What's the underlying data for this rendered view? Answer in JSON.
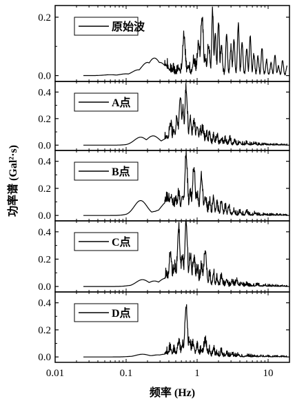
{
  "chart_data": {
    "type": "line",
    "xlabel": "频率 (Hz)",
    "ylabel": "功率谱 (Gal²·s)",
    "xscale": "log",
    "xlim": [
      0.01,
      20
    ],
    "x_ticks": [
      0.01,
      0.1,
      1,
      10
    ],
    "x_tick_labels": [
      "0.01",
      "0.1",
      "1",
      "10"
    ],
    "panels": [
      {
        "legend": "原始波",
        "ylim": [
          -0.02,
          0.24
        ],
        "y_ticks": [
          0.0,
          0.2
        ],
        "y_tick_labels": [
          "0.0",
          "0.2"
        ],
        "peaks": [
          [
            0.025,
            0.0
          ],
          [
            0.06,
            0.003
          ],
          [
            0.1,
            0.006
          ],
          [
            0.15,
            0.02
          ],
          [
            0.2,
            0.045
          ],
          [
            0.25,
            0.06
          ],
          [
            0.3,
            0.045
          ],
          [
            0.35,
            0.018
          ],
          [
            0.45,
            0.01
          ],
          [
            0.55,
            0.02
          ],
          [
            0.65,
            0.12
          ],
          [
            0.75,
            0.025
          ],
          [
            0.9,
            0.04
          ],
          [
            1.05,
            0.1
          ],
          [
            1.17,
            0.19
          ],
          [
            1.3,
            0.05
          ],
          [
            1.45,
            0.09
          ],
          [
            1.65,
            0.21
          ],
          [
            1.8,
            0.14
          ],
          [
            2.0,
            0.18
          ],
          [
            2.2,
            0.1
          ],
          [
            2.6,
            0.14
          ],
          [
            3.0,
            0.09
          ],
          [
            3.3,
            0.12
          ],
          [
            3.8,
            0.17
          ],
          [
            4.3,
            0.11
          ],
          [
            5.0,
            0.09
          ],
          [
            5.6,
            0.13
          ],
          [
            6.3,
            0.07
          ],
          [
            7.2,
            0.06
          ],
          [
            8.2,
            0.09
          ],
          [
            9.5,
            0.05
          ],
          [
            11,
            0.04
          ],
          [
            12.5,
            0.07
          ],
          [
            14,
            0.03
          ],
          [
            16,
            0.05
          ],
          [
            18.5,
            0.03
          ]
        ]
      },
      {
        "legend": "A点",
        "ylim": [
          -0.04,
          0.48
        ],
        "y_ticks": [
          0.0,
          0.2,
          0.4
        ],
        "y_tick_labels": [
          "0.0",
          "0.2",
          "0.4"
        ],
        "peaks": [
          [
            0.025,
            0.0
          ],
          [
            0.13,
            0.01
          ],
          [
            0.16,
            0.06
          ],
          [
            0.19,
            0.02
          ],
          [
            0.24,
            0.07
          ],
          [
            0.3,
            0.03
          ],
          [
            0.38,
            0.05
          ],
          [
            0.42,
            0.15
          ],
          [
            0.47,
            0.1
          ],
          [
            0.52,
            0.18
          ],
          [
            0.58,
            0.35
          ],
          [
            0.63,
            0.25
          ],
          [
            0.7,
            0.4
          ],
          [
            0.8,
            0.18
          ],
          [
            0.9,
            0.16
          ],
          [
            1.0,
            0.13
          ],
          [
            1.1,
            0.09
          ],
          [
            1.2,
            0.1
          ],
          [
            1.35,
            0.06
          ],
          [
            1.5,
            0.08
          ],
          [
            1.7,
            0.05
          ],
          [
            1.9,
            0.06
          ],
          [
            2.2,
            0.04
          ],
          [
            2.5,
            0.03
          ],
          [
            2.9,
            0.04
          ],
          [
            3.4,
            0.02
          ],
          [
            4.0,
            0.02
          ],
          [
            5.0,
            0.01
          ],
          [
            6.5,
            0.01
          ],
          [
            9,
            0.005
          ]
        ]
      },
      {
        "legend": "B点",
        "ylim": [
          -0.04,
          0.48
        ],
        "y_ticks": [
          0.0,
          0.2,
          0.4
        ],
        "y_tick_labels": [
          "0.0",
          "0.2",
          "0.4"
        ],
        "peaks": [
          [
            0.025,
            0.0
          ],
          [
            0.13,
            0.02
          ],
          [
            0.16,
            0.11
          ],
          [
            0.2,
            0.03
          ],
          [
            0.26,
            0.03
          ],
          [
            0.3,
            0.04
          ],
          [
            0.38,
            0.1
          ],
          [
            0.43,
            0.13
          ],
          [
            0.5,
            0.1
          ],
          [
            0.55,
            0.14
          ],
          [
            0.62,
            0.13
          ],
          [
            0.7,
            0.43
          ],
          [
            0.8,
            0.15
          ],
          [
            0.9,
            0.34
          ],
          [
            1.0,
            0.13
          ],
          [
            1.15,
            0.27
          ],
          [
            1.3,
            0.12
          ],
          [
            1.5,
            0.09
          ],
          [
            1.7,
            0.12
          ],
          [
            1.9,
            0.07
          ],
          [
            2.2,
            0.1
          ],
          [
            2.5,
            0.05
          ],
          [
            2.8,
            0.06
          ],
          [
            3.3,
            0.03
          ],
          [
            4.0,
            0.02
          ],
          [
            5.0,
            0.02
          ],
          [
            6.5,
            0.01
          ],
          [
            9,
            0.005
          ]
        ]
      },
      {
        "legend": "C点",
        "ylim": [
          -0.04,
          0.48
        ],
        "y_ticks": [
          0.0,
          0.2,
          0.4
        ],
        "y_tick_labels": [
          "0.0",
          "0.2",
          "0.4"
        ],
        "peaks": [
          [
            0.025,
            0.0
          ],
          [
            0.13,
            0.01
          ],
          [
            0.17,
            0.05
          ],
          [
            0.2,
            0.02
          ],
          [
            0.25,
            0.04
          ],
          [
            0.3,
            0.02
          ],
          [
            0.36,
            0.06
          ],
          [
            0.42,
            0.23
          ],
          [
            0.48,
            0.13
          ],
          [
            0.55,
            0.4
          ],
          [
            0.62,
            0.2
          ],
          [
            0.7,
            0.45
          ],
          [
            0.8,
            0.2
          ],
          [
            0.9,
            0.18
          ],
          [
            1.0,
            0.11
          ],
          [
            1.15,
            0.12
          ],
          [
            1.3,
            0.24
          ],
          [
            1.5,
            0.07
          ],
          [
            1.7,
            0.09
          ],
          [
            1.9,
            0.05
          ],
          [
            2.2,
            0.06
          ],
          [
            2.6,
            0.04
          ],
          [
            3.1,
            0.03
          ],
          [
            3.6,
            0.04
          ],
          [
            4.2,
            0.02
          ],
          [
            5.0,
            0.01
          ],
          [
            7,
            0.01
          ],
          [
            9,
            0.005
          ]
        ]
      },
      {
        "legend": "D点",
        "ylim": [
          -0.04,
          0.48
        ],
        "y_ticks": [
          0.0,
          0.2,
          0.4
        ],
        "y_tick_labels": [
          "0.0",
          "0.2",
          "0.4"
        ],
        "peaks": [
          [
            0.025,
            0.0
          ],
          [
            0.13,
            0.005
          ],
          [
            0.17,
            0.02
          ],
          [
            0.22,
            0.01
          ],
          [
            0.28,
            0.015
          ],
          [
            0.35,
            0.02
          ],
          [
            0.42,
            0.05
          ],
          [
            0.48,
            0.03
          ],
          [
            0.55,
            0.09
          ],
          [
            0.62,
            0.07
          ],
          [
            0.7,
            0.36
          ],
          [
            0.78,
            0.1
          ],
          [
            0.88,
            0.08
          ],
          [
            1.0,
            0.06
          ],
          [
            1.15,
            0.04
          ],
          [
            1.3,
            0.1
          ],
          [
            1.5,
            0.04
          ],
          [
            1.7,
            0.05
          ],
          [
            1.9,
            0.02
          ],
          [
            2.2,
            0.03
          ],
          [
            2.6,
            0.02
          ],
          [
            3.1,
            0.015
          ],
          [
            3.8,
            0.01
          ],
          [
            5,
            0.005
          ],
          [
            8,
            0.003
          ]
        ]
      }
    ]
  }
}
